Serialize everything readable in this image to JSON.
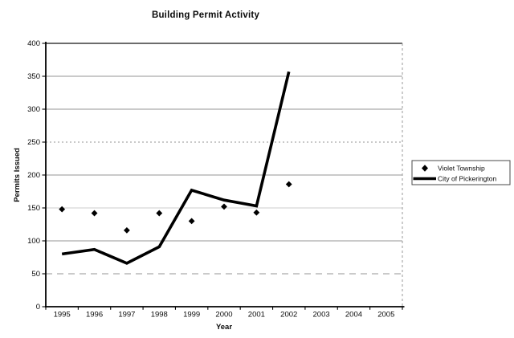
{
  "chart_data": {
    "type": "line",
    "title": "Building Permit Activity",
    "xlabel": "Year",
    "ylabel": "Permits Issued",
    "ylim": [
      0,
      400
    ],
    "ytick_step": 50,
    "grid": true,
    "legend_position": "right",
    "categories": [
      "1995",
      "1996",
      "1997",
      "1998",
      "1999",
      "2000",
      "2001",
      "2002",
      "2003",
      "2004",
      "2005"
    ],
    "series": [
      {
        "name": "Violet Township",
        "type": "scatter",
        "marker": "diamond",
        "color": "#000000",
        "values": [
          148,
          142,
          116,
          142,
          130,
          152,
          143,
          186,
          null,
          null,
          null
        ]
      },
      {
        "name": "City of Pickerington",
        "type": "line",
        "color": "#000000",
        "values": [
          80,
          87,
          66,
          91,
          177,
          162,
          153,
          357,
          null,
          null,
          null
        ]
      }
    ]
  },
  "colors": {
    "background": "#ffffff",
    "text": "#0a0a0a",
    "axis": "#000000",
    "gridline": "#949494",
    "series": "#000000"
  }
}
